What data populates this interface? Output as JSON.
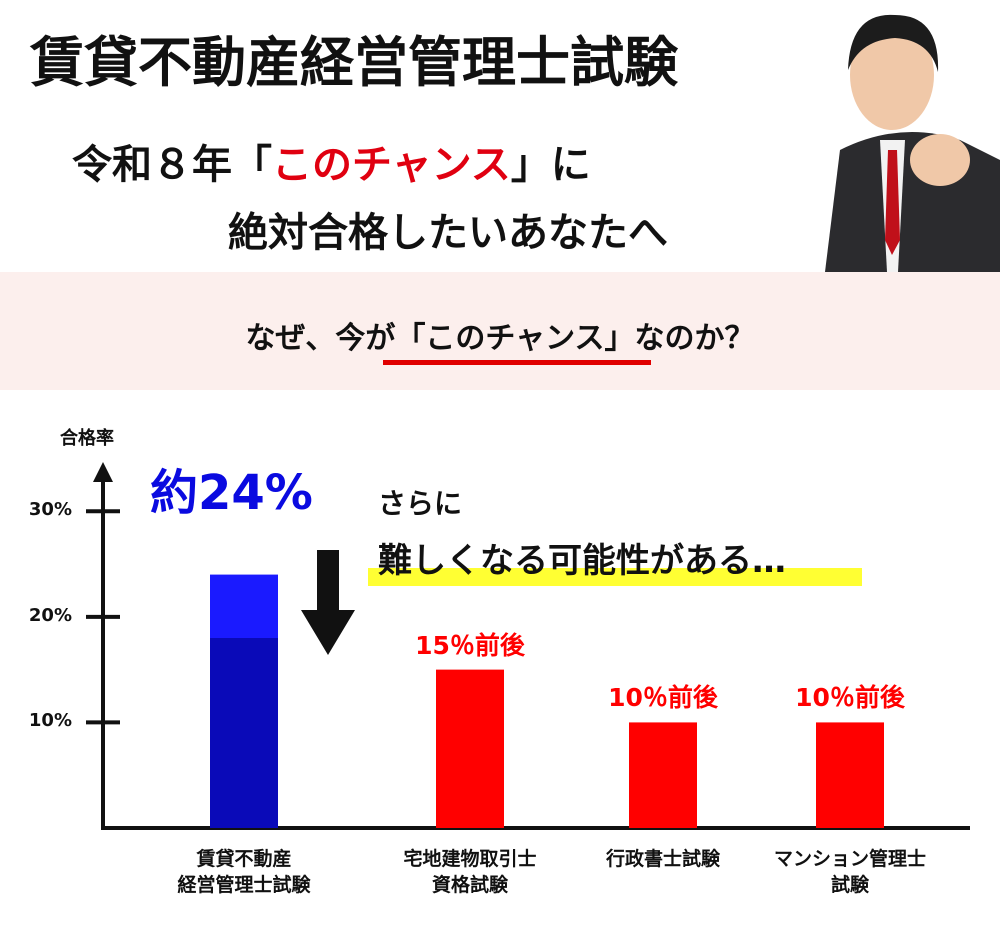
{
  "header": {
    "title": "賃貸不動産経営管理士試験",
    "lead_line1": [
      "令和８年「",
      "このチャンス",
      "」に"
    ],
    "lead_line2": "絶対合格したいあなたへ"
  },
  "question": [
    "なぜ、今が",
    "「このチャンス」",
    "なのか？"
  ],
  "chart_data": {
    "type": "bar",
    "y_label": "合格率",
    "categories": [
      "賃貸不動産\n経営管理士試験",
      "宅地建物取引士\n資格試験",
      "行政書士試験",
      "マンション管理士\n試験"
    ],
    "values": [
      24,
      15,
      10,
      10
    ],
    "value_labels": [
      "約24%",
      "15％前後",
      "10％前後",
      "10％前後"
    ],
    "colors": [
      "#0a0ae0",
      "#ff0000",
      "#ff0000",
      "#ff0000"
    ],
    "ylim": [
      0,
      34
    ],
    "yticks": [
      {
        "value": 10,
        "label": "10%"
      },
      {
        "value": 20,
        "label": "20%"
      },
      {
        "value": 30,
        "label": "30%"
      }
    ],
    "annotations": [
      "さらに",
      "難しくなる可能性がある…"
    ]
  }
}
